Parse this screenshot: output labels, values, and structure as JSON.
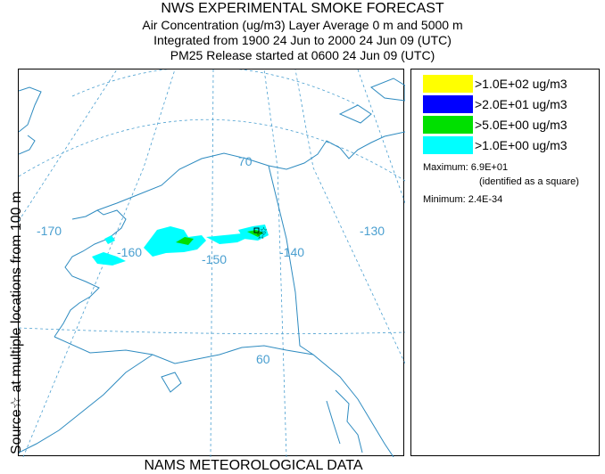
{
  "title": {
    "line1": "NWS EXPERIMENTAL SMOKE FORECAST",
    "line2": "Air Concentration (ug/m3) Layer Average    0 m and  5000 m",
    "line3": "Integrated from 1900 24 Jun to 2000 24 Jun 09 (UTC)",
    "line4": "PM25 Release started at 0600 24 Jun 09 (UTC)"
  },
  "side_label": "Source☆ at multiple locations   from   100 m",
  "footer": "NAMS METEOROLOGICAL DATA",
  "map": {
    "lon_labels": [
      "-170",
      "-160",
      "-150",
      "-140",
      "-130"
    ],
    "lat_labels": [
      "70",
      "60"
    ],
    "colors": {
      "land_line": "#2e8bc0",
      "graticule": "#4a9fd0",
      "lon_label": "#4a9fd0",
      "level_gt1": "#00ffff",
      "level_gt5": "#00e000",
      "level_gt20": "#0000ff",
      "level_gt100": "#ffff00"
    }
  },
  "legend": {
    "items": [
      {
        "label": ">1.0E+02 ug/m3",
        "color": "#ffff00"
      },
      {
        "label": ">2.0E+01 ug/m3",
        "color": "#0000ff"
      },
      {
        "label": ">5.0E+00 ug/m3",
        "color": "#00e000"
      },
      {
        "label": ">1.0E+00 ug/m3",
        "color": "#00ffff"
      }
    ],
    "maximum_label": "Maximum: 6.9E+01",
    "maximum_note": "(identified as a square)",
    "minimum_label": "Minimum: 2.4E-34"
  }
}
